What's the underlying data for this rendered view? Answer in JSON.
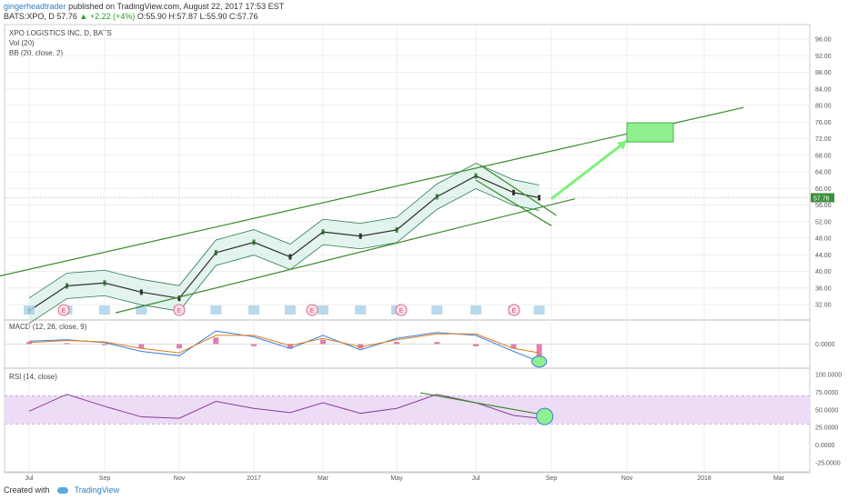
{
  "header": {
    "author": "gingerheadtrader",
    "published": "published on TradingView.com, August 22, 2017 17:53 EST",
    "symbol": "BATS:XPO, D",
    "price": "57.76",
    "change": "+2.22 (+4%)",
    "ohlc": "O:55.90 H:57.87 L:55.90 C:57.76"
  },
  "legend": {
    "title": "XPO LOGISTICS INC, D, BATS",
    "vol": "Vol (20)",
    "bb": "BB (20, close, 2)",
    "macd": "MACD (12, 26, close, 9)",
    "rsi": "RSI (14, close)"
  },
  "footer": {
    "created_with": "Created with",
    "brand": "TradingView"
  },
  "colors": {
    "candle_up": "#3c8f3c",
    "candle_down": "#333333",
    "bb_band": "#2b7a4b",
    "bb_fill": "#d6efe6",
    "bb_basis": "#c0504d",
    "trend": "#3a8a2a",
    "arrow": "#7cf27c",
    "target": "#8ef08e",
    "volume": "#a9cfe8",
    "macd_line": "#3b7dd8",
    "signal_line": "#e07b1a",
    "hist": "#e07fb0",
    "rsi_line": "#8a3c9a",
    "rsi_fill": "#eddcf6",
    "price_badge": "#3c8f3c",
    "grid": "#eeeeee"
  },
  "chart_data": [
    {
      "type": "line",
      "title": "XPO LOGISTICS INC, D, BATS",
      "price_ticks": [
        "96.00",
        "92.00",
        "88.00",
        "84.00",
        "80.00",
        "76.00",
        "72.00",
        "68.00",
        "64.00",
        "60.00",
        "56.00",
        "52.00",
        "48.00",
        "44.00",
        "40.00",
        "36.00",
        "32.00"
      ],
      "current_price_label": "57.76",
      "ylim": [
        30,
        98
      ],
      "x_tick_labels": [
        "Jul",
        "Sep",
        "Nov",
        "2017",
        "Mar",
        "May",
        "Jul",
        "Sep",
        "Nov",
        "2018",
        "Mar"
      ],
      "x": [
        "2016-07-01",
        "2016-08-01",
        "2016-09-01",
        "2016-10-01",
        "2016-11-01",
        "2016-12-01",
        "2017-01-01",
        "2017-02-01",
        "2017-03-01",
        "2017-04-01",
        "2017-05-01",
        "2017-06-01",
        "2017-07-01",
        "2017-08-01",
        "2017-08-22"
      ],
      "series": [
        {
          "values": [
            30.5,
            36.5,
            37.2,
            35.0,
            33.5,
            44.5,
            47.0,
            43.5,
            49.5,
            48.5,
            50.0,
            58.0,
            63.0,
            59.0,
            57.76
          ]
        }
      ],
      "earnings_markers": [
        "E",
        "E",
        "E",
        "E",
        "E"
      ],
      "annotations": {
        "channel_upper": [
          [
            "2016-06-01",
            38.5
          ],
          [
            "2018-02-01",
            79.5
          ]
        ],
        "channel_lower": [
          [
            "2016-09-10",
            30.0
          ],
          [
            "2017-09-20",
            57.5
          ]
        ],
        "wedge_upper": [
          [
            "2017-07-05",
            65.5
          ],
          [
            "2017-09-05",
            53.5
          ]
        ],
        "wedge_lower": [
          [
            "2017-07-01",
            62.0
          ],
          [
            "2017-09-01",
            51.0
          ]
        ],
        "arrow": [
          [
            "2017-09-01",
            57.5
          ],
          [
            "2017-11-01",
            71.5
          ]
        ],
        "target_box": {
          "x0": "2017-11-01",
          "x1": "2018-01-01",
          "y0": 71.2,
          "y1": 75.8
        }
      }
    },
    {
      "type": "line",
      "title": "MACD (12, 26, close, 9)",
      "zero_label": "0.0000",
      "series": [
        {
          "values": [
            0.2,
            0.3,
            0.1,
            -0.5,
            -0.8,
            0.9,
            0.5,
            -0.3,
            0.6,
            -0.4,
            0.4,
            0.8,
            0.6,
            -0.5,
            -1.2
          ]
        },
        {
          "values": [
            0.1,
            0.25,
            0.15,
            -0.3,
            -0.6,
            0.6,
            0.6,
            -0.1,
            0.4,
            -0.2,
            0.3,
            0.7,
            0.7,
            -0.3,
            -0.6
          ]
        }
      ]
    },
    {
      "type": "line",
      "title": "RSI (14, close)",
      "y_ticks": [
        "100.0000",
        "75.0000",
        "50.0000",
        "25.0000",
        "0.0000",
        "-25.0000"
      ],
      "ylim": [
        -30,
        105
      ],
      "band": [
        30,
        70
      ],
      "series": [
        {
          "values": [
            48,
            72,
            55,
            40,
            38,
            62,
            52,
            46,
            60,
            45,
            52,
            72,
            60,
            42,
            38
          ]
        }
      ]
    }
  ]
}
